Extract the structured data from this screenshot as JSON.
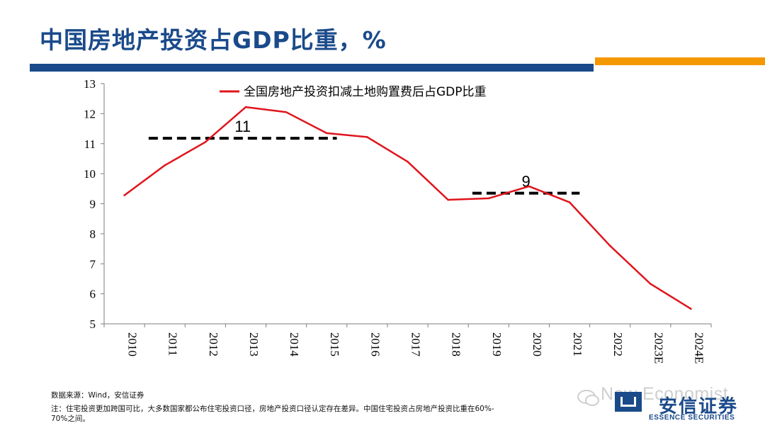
{
  "header": {
    "title": "中国房地产投资占GDP比重，%"
  },
  "colors": {
    "title": "#1a4a8a",
    "top_bar_blue": "#1a4a8a",
    "top_bar_orange": "#f39800",
    "series_line": "#e0141c",
    "reference_line": "#000000"
  },
  "chart_data": {
    "type": "line",
    "title": "",
    "xlabel": "",
    "ylabel": "",
    "categories": [
      "2010",
      "2011",
      "2012",
      "2013",
      "2014",
      "2015",
      "2016",
      "2017",
      "2018",
      "2019",
      "2020",
      "2021",
      "2022",
      "2023E",
      "2024E"
    ],
    "ylim": [
      5,
      13
    ],
    "yticks": [
      5,
      6,
      7,
      8,
      9,
      10,
      11,
      12,
      13
    ],
    "grid": false,
    "legend_position": "top",
    "series": [
      {
        "name": "全国房地产投资扣减土地购置费后占GDP比重",
        "values": [
          9.28,
          10.28,
          11.05,
          12.22,
          12.05,
          11.35,
          11.22,
          10.4,
          9.13,
          9.18,
          9.58,
          9.05,
          7.6,
          6.33,
          5.5
        ]
      }
    ],
    "reference_lines": [
      {
        "label": "11",
        "value": 11.18,
        "from": "2010",
        "to": "2015"
      },
      {
        "label": "9",
        "value": 9.35,
        "from": "2018",
        "to": "2021"
      }
    ]
  },
  "footnotes": {
    "source": "数据来源：Wind，安信证券",
    "note_line1": "注：住宅投资更加跨国可比，大多数国家都公布住宅投资口径，房地产投资口径认定存在差异。中国住宅投资占房地产投资比重在60%-",
    "note_line2": "70%之间。"
  },
  "watermark": {
    "text": "New Economist",
    "icon": "wechat-bubble-icon"
  },
  "brand": {
    "name_cn": "安信证券",
    "name_en": "ESSENCE SECURITIES"
  }
}
